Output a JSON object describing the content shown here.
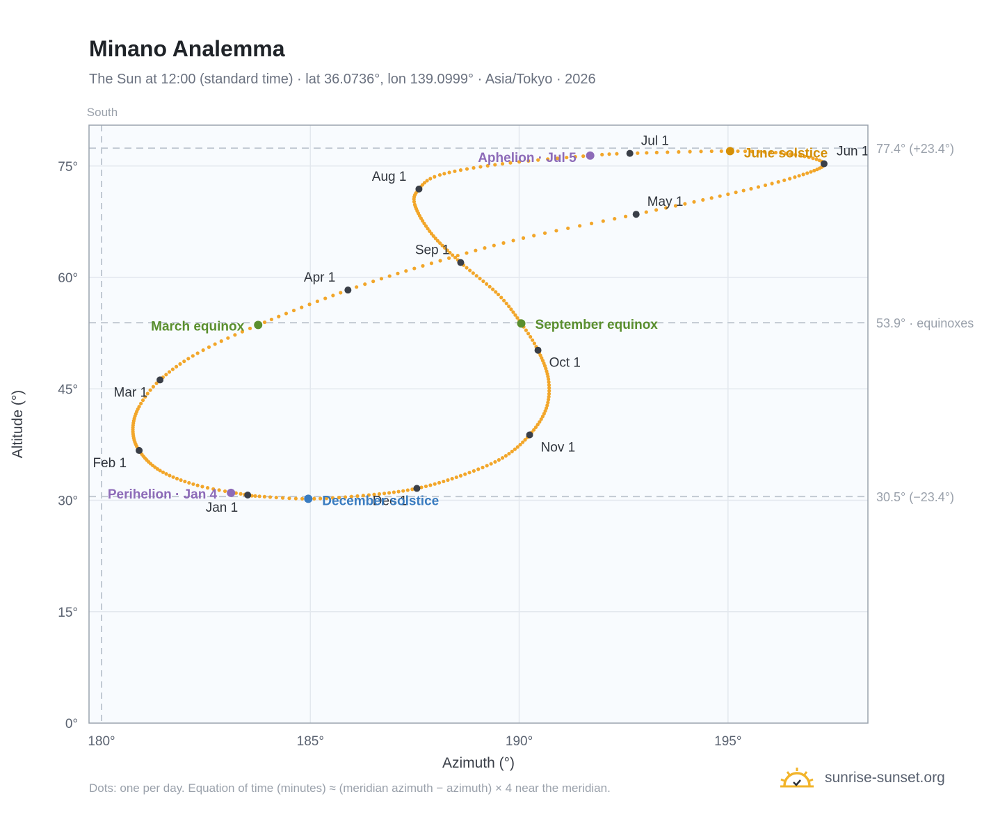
{
  "title": "Minano Analemma",
  "subtitle": "The Sun at 12:00 (standard time) · lat 36.0736°, lon 139.0999° · Asia/Tokyo · 2026",
  "footnote": "Dots: one per day. Equation of time (minutes) ≈ (meridian azimuth − azimuth) × 4 near the meridian.",
  "brand": {
    "name": "sunrise-sunset.org",
    "icon": "sun-logo-icon"
  },
  "colors": {
    "curve": "#f2a62a",
    "month": "#3a3f48",
    "equinox": "#5a8f2e",
    "june_solstice": "#d48f06",
    "december_solstice": "#3a7cc0",
    "aphelion_perihelion": "#8d6bb8",
    "plot_bg": "#f8fbfe",
    "grid": "#e3e8ee",
    "frame": "#9aa3ae",
    "ref_line": "#c2cad3"
  },
  "chart_data": {
    "type": "scatter",
    "title": "Minano Analemma",
    "xlabel": "Azimuth (°)",
    "ylabel": "Altitude (°)",
    "xlim": [
      179.7,
      198.35
    ],
    "ylim": [
      0,
      80.5
    ],
    "xticks": [
      {
        "value": 180,
        "label": "180°"
      },
      {
        "value": 185,
        "label": "185°"
      },
      {
        "value": 190,
        "label": "190°"
      },
      {
        "value": 195,
        "label": "195°"
      }
    ],
    "yticks": [
      {
        "value": 0,
        "label": "0°"
      },
      {
        "value": 15,
        "label": "15°"
      },
      {
        "value": 30,
        "label": "30°"
      },
      {
        "value": 45,
        "label": "45°"
      },
      {
        "value": 60,
        "label": "60°"
      },
      {
        "value": 75,
        "label": "75°"
      }
    ],
    "grid": true,
    "south_marker": {
      "azimuth": 180,
      "label": "South"
    },
    "reference_lines": [
      {
        "altitude": 77.4,
        "label": "77.4° (+23.4°)"
      },
      {
        "altitude": 53.9,
        "label": "53.9° · equinoxes"
      },
      {
        "altitude": 30.5,
        "label": "30.5° (−23.4°)"
      }
    ],
    "path_keypoints": [
      {
        "day": 1,
        "az": 183.5,
        "alt": 30.7
      },
      {
        "day": 11,
        "az": 182.3,
        "alt": 32.0
      },
      {
        "day": 21,
        "az": 181.4,
        "alt": 34.0
      },
      {
        "day": 32,
        "az": 180.9,
        "alt": 36.7
      },
      {
        "day": 42,
        "az": 180.75,
        "alt": 39.5
      },
      {
        "day": 52,
        "az": 180.9,
        "alt": 42.6
      },
      {
        "day": 60,
        "az": 181.4,
        "alt": 46.2
      },
      {
        "day": 70,
        "az": 182.3,
        "alt": 49.8
      },
      {
        "day": 79,
        "az": 183.75,
        "alt": 53.6
      },
      {
        "day": 91,
        "az": 185.9,
        "alt": 58.3
      },
      {
        "day": 101,
        "az": 187.9,
        "alt": 61.9
      },
      {
        "day": 111,
        "az": 190.1,
        "alt": 65.3
      },
      {
        "day": 121,
        "az": 192.8,
        "alt": 68.5
      },
      {
        "day": 131,
        "az": 195.0,
        "alt": 71.2
      },
      {
        "day": 141,
        "az": 196.6,
        "alt": 73.5
      },
      {
        "day": 152,
        "az": 197.3,
        "alt": 75.3
      },
      {
        "day": 162,
        "az": 196.5,
        "alt": 76.6
      },
      {
        "day": 172,
        "az": 195.05,
        "alt": 77.0
      },
      {
        "day": 182,
        "az": 192.65,
        "alt": 76.7
      },
      {
        "day": 186,
        "az": 191.7,
        "alt": 76.4
      },
      {
        "day": 196,
        "az": 189.6,
        "alt": 75.3
      },
      {
        "day": 206,
        "az": 188.1,
        "alt": 73.8
      },
      {
        "day": 213,
        "az": 187.6,
        "alt": 71.9
      },
      {
        "day": 220,
        "az": 187.5,
        "alt": 69.8
      },
      {
        "day": 232,
        "az": 187.9,
        "alt": 65.9
      },
      {
        "day": 244,
        "az": 188.6,
        "alt": 62.0
      },
      {
        "day": 256,
        "az": 189.5,
        "alt": 57.7
      },
      {
        "day": 266,
        "az": 190.05,
        "alt": 53.8
      },
      {
        "day": 274,
        "az": 190.45,
        "alt": 50.2
      },
      {
        "day": 285,
        "az": 190.7,
        "alt": 46.3
      },
      {
        "day": 295,
        "az": 190.65,
        "alt": 42.4
      },
      {
        "day": 305,
        "az": 190.25,
        "alt": 38.8
      },
      {
        "day": 315,
        "az": 189.6,
        "alt": 35.7
      },
      {
        "day": 325,
        "az": 188.6,
        "alt": 33.3
      },
      {
        "day": 335,
        "az": 187.55,
        "alt": 31.6
      },
      {
        "day": 345,
        "az": 186.4,
        "alt": 30.7
      },
      {
        "day": 355,
        "az": 184.95,
        "alt": 30.2
      },
      {
        "day": 365,
        "az": 183.6,
        "alt": 30.6
      }
    ],
    "month_markers": [
      {
        "label": "Jan 1",
        "az": 183.5,
        "alt": 30.7
      },
      {
        "label": "Feb 1",
        "az": 180.9,
        "alt": 36.7
      },
      {
        "label": "Mar 1",
        "az": 181.4,
        "alt": 46.2
      },
      {
        "label": "Apr 1",
        "az": 185.9,
        "alt": 58.3
      },
      {
        "label": "May 1",
        "az": 192.8,
        "alt": 68.5
      },
      {
        "label": "Jun 1",
        "az": 197.3,
        "alt": 75.3
      },
      {
        "label": "Jul 1",
        "az": 192.65,
        "alt": 76.7
      },
      {
        "label": "Aug 1",
        "az": 187.6,
        "alt": 71.9
      },
      {
        "label": "Sep 1",
        "az": 188.6,
        "alt": 62.0
      },
      {
        "label": "Oct 1",
        "az": 190.45,
        "alt": 50.2
      },
      {
        "label": "Nov 1",
        "az": 190.25,
        "alt": 38.8
      },
      {
        "label": "Dec 1",
        "az": 187.55,
        "alt": 31.6
      }
    ],
    "events": [
      {
        "label": "March equinox",
        "az": 183.75,
        "alt": 53.6,
        "kind": "equinox"
      },
      {
        "label": "September equinox",
        "az": 190.05,
        "alt": 53.8,
        "kind": "equinox"
      },
      {
        "label": "June solstice",
        "az": 195.05,
        "alt": 77.0,
        "kind": "june_solstice"
      },
      {
        "label": "December solstice",
        "az": 184.95,
        "alt": 30.2,
        "kind": "december_solstice"
      },
      {
        "label": "Aphelion · Jul 5",
        "az": 191.7,
        "alt": 76.4,
        "kind": "aphelion_perihelion"
      },
      {
        "label": "Perihelion · Jan 4",
        "az": 183.1,
        "alt": 31.0,
        "kind": "aphelion_perihelion"
      }
    ]
  }
}
